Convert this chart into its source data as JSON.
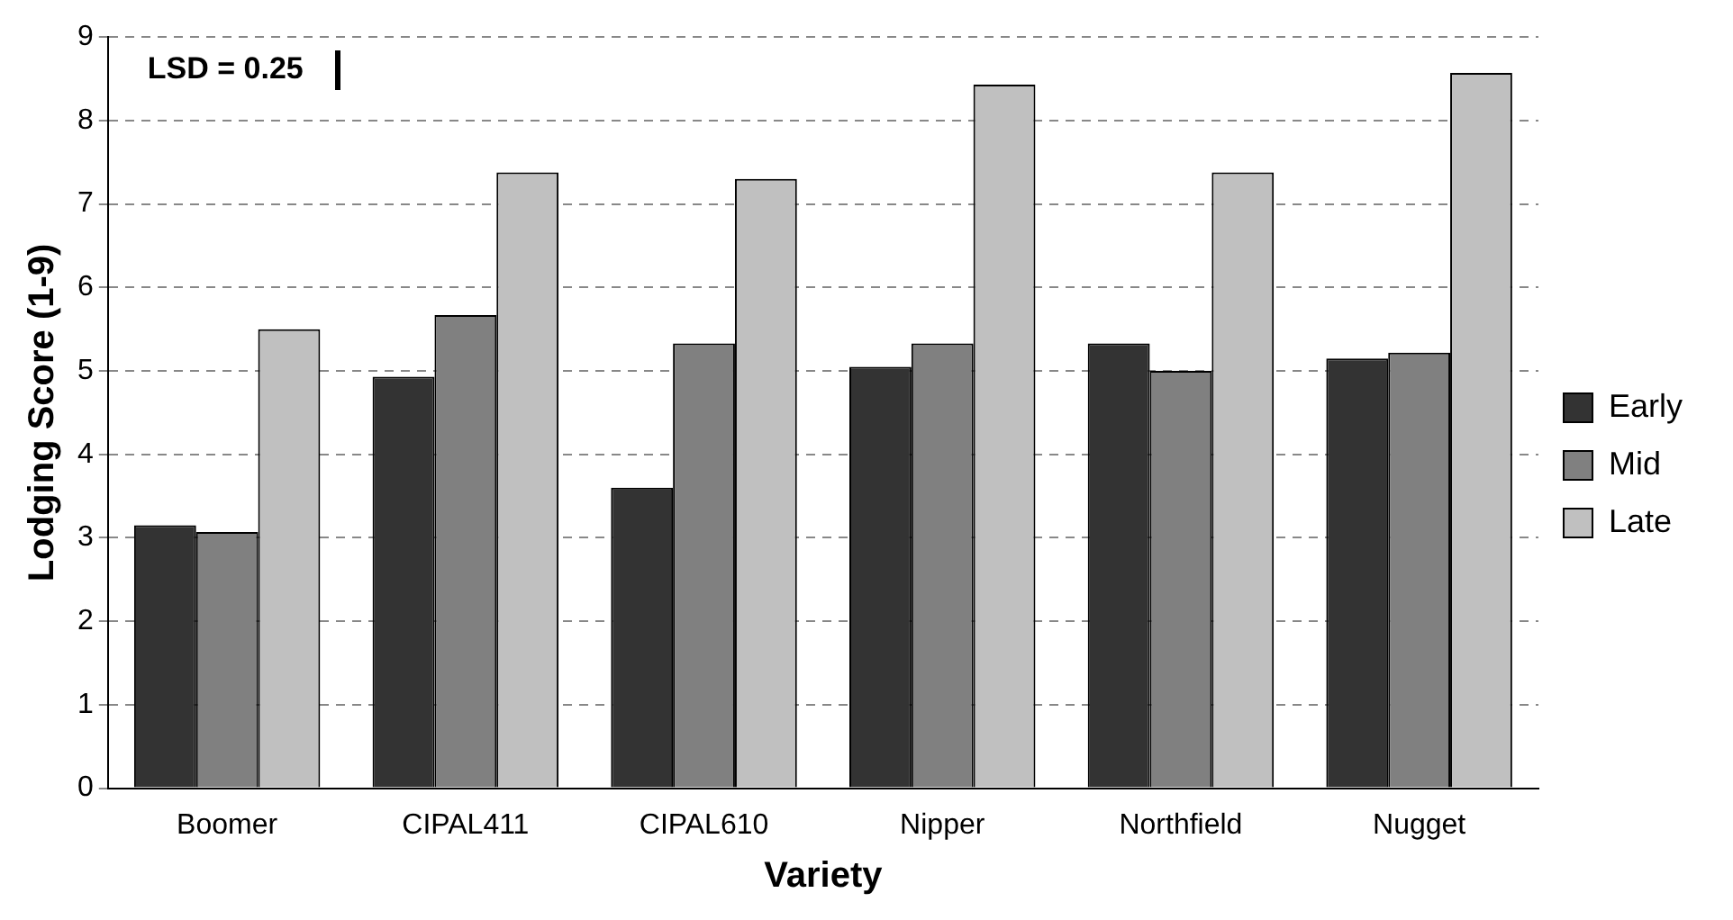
{
  "chart_data": {
    "type": "bar",
    "xlabel": "Variety",
    "ylabel": "Lodging Score (1-9)",
    "categories": [
      "Boomer",
      "CIPAL411",
      "CIPAL610",
      "Nipper",
      "Northfield",
      "Nugget"
    ],
    "series": [
      {
        "name": "Early",
        "color": "#333333",
        "values": [
          3.15,
          4.93,
          3.6,
          5.05,
          5.33,
          5.15
        ]
      },
      {
        "name": "Mid",
        "color": "#808080",
        "values": [
          3.07,
          5.67,
          5.33,
          5.33,
          5.0,
          5.22
        ]
      },
      {
        "name": "Late",
        "color": "#c0c0c0",
        "values": [
          5.5,
          7.38,
          7.3,
          8.43,
          7.38,
          8.57
        ]
      }
    ],
    "ylim": [
      0,
      9
    ],
    "yticks": [
      0,
      1,
      2,
      3,
      4,
      5,
      6,
      7,
      8,
      9
    ],
    "grid": "y",
    "legend": "right",
    "annotations": [
      "LSD = 0.25"
    ]
  }
}
